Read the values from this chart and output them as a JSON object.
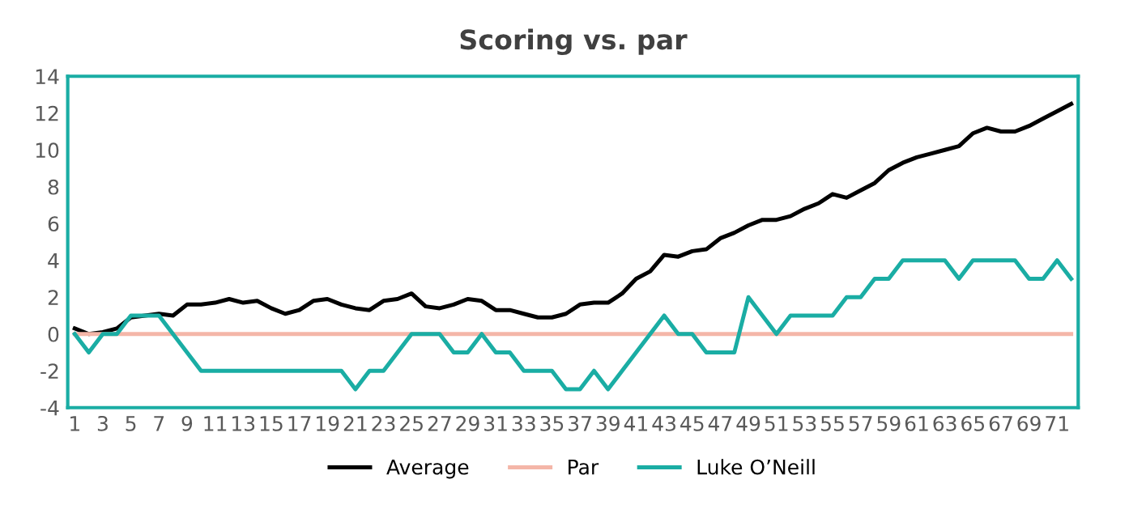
{
  "chart_data": {
    "type": "line",
    "title": "Scoring vs. par",
    "categories": [
      "1",
      null,
      "3",
      null,
      "5",
      null,
      "7",
      null,
      "9",
      null,
      "11",
      null,
      "13",
      null,
      "15",
      null,
      "17",
      null,
      "19",
      null,
      "21",
      null,
      "23",
      null,
      "25",
      null,
      "27",
      null,
      "29",
      null,
      "31",
      null,
      "33",
      null,
      "35",
      null,
      "37",
      null,
      "39",
      null,
      "41",
      null,
      "43",
      null,
      "45",
      null,
      "47",
      null,
      "49",
      null,
      "51",
      null,
      "53",
      null,
      "55",
      null,
      "57",
      null,
      "59",
      null,
      "61",
      null,
      "63",
      null,
      "65",
      null,
      "67",
      null,
      "69",
      null,
      "71",
      null
    ],
    "series": [
      {
        "name": "Average",
        "color": "#000000",
        "values": [
          0.3,
          0,
          0.1,
          0.3,
          0.9,
          1.0,
          1.1,
          1.0,
          1.6,
          1.6,
          1.7,
          1.9,
          1.7,
          1.8,
          1.4,
          1.1,
          1.3,
          1.8,
          1.9,
          1.6,
          1.4,
          1.3,
          1.8,
          1.9,
          2.2,
          1.5,
          1.4,
          1.6,
          1.9,
          1.8,
          1.3,
          1.3,
          1.1,
          0.9,
          0.9,
          1.1,
          1.6,
          1.7,
          1.7,
          2.2,
          3.0,
          3.4,
          4.3,
          4.2,
          4.5,
          4.6,
          5.2,
          5.5,
          5.9,
          6.2,
          6.2,
          6.4,
          6.8,
          7.1,
          7.6,
          7.4,
          7.8,
          8.2,
          8.9,
          9.3,
          9.6,
          9.8,
          10.0,
          10.2,
          10.9,
          11.2,
          11.0,
          11.0,
          11.3,
          11.7,
          12.1,
          12.5
        ]
      },
      {
        "name": "Par",
        "color": "#f4b6a8",
        "values": [
          0,
          0,
          0,
          0,
          0,
          0,
          0,
          0,
          0,
          0,
          0,
          0,
          0,
          0,
          0,
          0,
          0,
          0,
          0,
          0,
          0,
          0,
          0,
          0,
          0,
          0,
          0,
          0,
          0,
          0,
          0,
          0,
          0,
          0,
          0,
          0,
          0,
          0,
          0,
          0,
          0,
          0,
          0,
          0,
          0,
          0,
          0,
          0,
          0,
          0,
          0,
          0,
          0,
          0,
          0,
          0,
          0,
          0,
          0,
          0,
          0,
          0,
          0,
          0,
          0,
          0,
          0,
          0,
          0,
          0,
          0,
          0
        ]
      },
      {
        "name": "Luke O’Neill",
        "color": "#1aada4",
        "values": [
          0,
          -1,
          0,
          0,
          1,
          1,
          1,
          0,
          -1,
          -2,
          -2,
          -2,
          -2,
          -2,
          -2,
          -2,
          -2,
          -2,
          -2,
          -2,
          -3,
          -2,
          -2,
          -1,
          0,
          0,
          0,
          -1,
          -1,
          0,
          -1,
          -1,
          -2,
          -2,
          -2,
          -3,
          -3,
          -2,
          -3,
          -2,
          -1,
          0,
          1,
          0,
          0,
          -1,
          -1,
          -1,
          2,
          1,
          0,
          1,
          1,
          1,
          1,
          2,
          2,
          3,
          3,
          4,
          4,
          4,
          4,
          3,
          4,
          4,
          4,
          4,
          3,
          3,
          4,
          3
        ]
      }
    ],
    "ylim": [
      -4,
      14
    ],
    "yticks": [
      -4,
      -2,
      0,
      2,
      4,
      6,
      8,
      10,
      12,
      14
    ],
    "grid": false,
    "legend": "bottom",
    "marker": "none",
    "line_style": "solid"
  }
}
